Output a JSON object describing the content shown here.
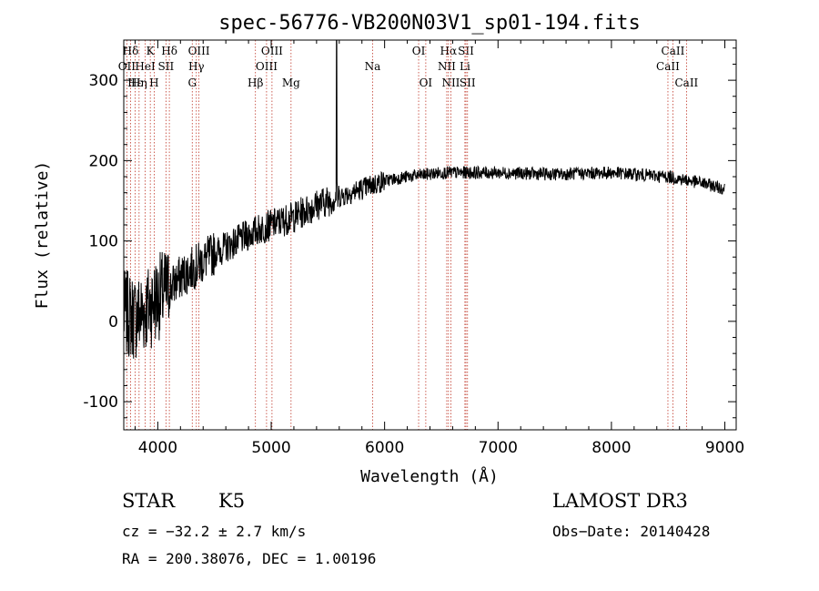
{
  "chart_data": {
    "type": "line",
    "title": "spec-56776-VB200N03V1_sp01-194.fits",
    "xlabel": "Wavelength (Å)",
    "ylabel": "Flux (relative)",
    "xlim": [
      3700,
      9100
    ],
    "ylim": [
      -135,
      350
    ],
    "xticks": [
      4000,
      5000,
      6000,
      7000,
      8000,
      9000
    ],
    "yticks": [
      -100,
      0,
      100,
      200,
      300
    ],
    "continuum_points": [
      [
        3700,
        10
      ],
      [
        3800,
        5
      ],
      [
        3900,
        15
      ],
      [
        4000,
        30
      ],
      [
        4100,
        40
      ],
      [
        4200,
        55
      ],
      [
        4300,
        65
      ],
      [
        4500,
        85
      ],
      [
        4700,
        100
      ],
      [
        4900,
        115
      ],
      [
        5000,
        120
      ],
      [
        5200,
        130
      ],
      [
        5400,
        145
      ],
      [
        5600,
        155
      ],
      [
        5800,
        165
      ],
      [
        6000,
        175
      ],
      [
        6200,
        180
      ],
      [
        6500,
        185
      ],
      [
        7000,
        185
      ],
      [
        7500,
        183
      ],
      [
        8000,
        185
      ],
      [
        8500,
        180
      ],
      [
        8800,
        172
      ],
      [
        9000,
        165
      ]
    ],
    "spike": {
      "wavelength": 5577,
      "flux": 350
    },
    "spectral_lines": [
      {
        "label": "Hδ",
        "wavelength": 3760,
        "row": 0
      },
      {
        "label": "OII",
        "wavelength": 3727,
        "row": 1
      },
      {
        "label": "Hε",
        "wavelength": 3800,
        "row": 2
      },
      {
        "label": "K",
        "wavelength": 3934,
        "row": 0
      },
      {
        "label": "HeI",
        "wavelength": 3889,
        "row": 1
      },
      {
        "label": "Hη",
        "wavelength": 3835,
        "row": 2
      },
      {
        "label": "Hδ",
        "wavelength": 4102,
        "row": 0
      },
      {
        "label": "SII",
        "wavelength": 4072,
        "row": 1
      },
      {
        "label": "H",
        "wavelength": 3968,
        "row": 2
      },
      {
        "label": "OIII",
        "wavelength": 4363,
        "row": 0
      },
      {
        "label": "Hγ",
        "wavelength": 4340,
        "row": 1
      },
      {
        "label": "G",
        "wavelength": 4304,
        "row": 2
      },
      {
        "label": "OIII",
        "wavelength": 5007,
        "row": 0
      },
      {
        "label": "OIII",
        "wavelength": 4959,
        "row": 1
      },
      {
        "label": "Hβ",
        "wavelength": 4861,
        "row": 2
      },
      {
        "label": "Mg",
        "wavelength": 5175,
        "row": 2
      },
      {
        "label": "Na",
        "wavelength": 5894,
        "row": 1
      },
      {
        "label": "OI",
        "wavelength": 6300,
        "row": 0
      },
      {
        "label": "OI",
        "wavelength": 6363,
        "row": 2
      },
      {
        "label": "Hα",
        "wavelength": 6563,
        "row": 0
      },
      {
        "label": "NII",
        "wavelength": 6548,
        "row": 1
      },
      {
        "label": "NII",
        "wavelength": 6584,
        "row": 2
      },
      {
        "label": "SII",
        "wavelength": 6717,
        "row": 0
      },
      {
        "label": "Li",
        "wavelength": 6708,
        "row": 1
      },
      {
        "label": "SII",
        "wavelength": 6731,
        "row": 2
      },
      {
        "label": "CaII",
        "wavelength": 8542,
        "row": 0
      },
      {
        "label": "CaII",
        "wavelength": 8498,
        "row": 1
      },
      {
        "label": "CaII",
        "wavelength": 8662,
        "row": 2
      }
    ]
  },
  "info": {
    "class": "STAR",
    "subclass": "K5",
    "survey": "LAMOST DR3",
    "cz": "cz = −32.2 ± 2.7 km/s",
    "obs_date": "Obs−Date: 20140428",
    "coords": "RA = 200.38076, DEC =    1.00196"
  }
}
